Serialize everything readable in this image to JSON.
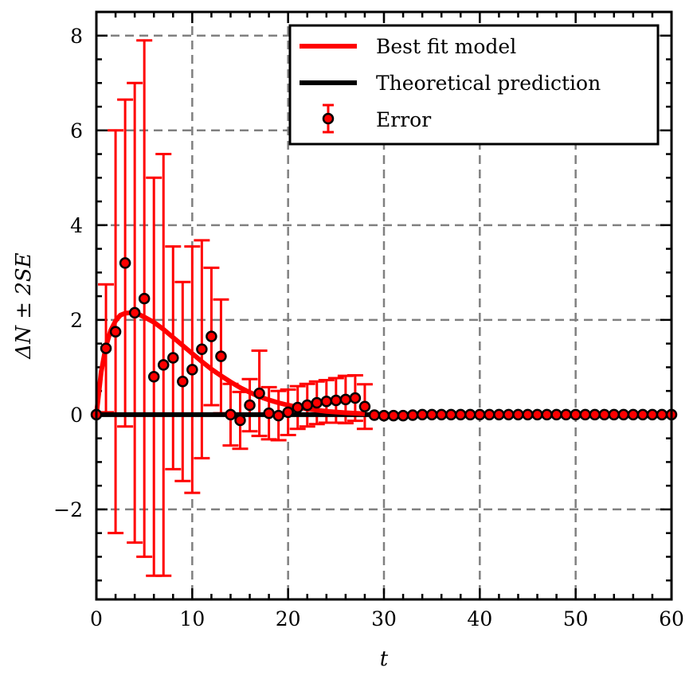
{
  "chart_data": {
    "type": "scatter",
    "xlabel": "t",
    "ylabel": "ΔN ± 2SE",
    "xlim": [
      0,
      60
    ],
    "ylim": [
      -3.9,
      8.5
    ],
    "x_ticks": [
      0,
      10,
      20,
      30,
      40,
      50,
      60
    ],
    "x_tick_labels": [
      "0",
      "10",
      "20",
      "30",
      "40",
      "50",
      "60"
    ],
    "y_ticks": [
      -2,
      0,
      2,
      4,
      6,
      8
    ],
    "y_tick_labels": [
      "−2",
      "0",
      "2",
      "4",
      "6",
      "8"
    ],
    "grid": true,
    "legend_position": "top-right",
    "colors": {
      "fit": "#ff0000",
      "theory": "#000000",
      "error": "#ff0000",
      "marker_edge": "#000000"
    },
    "series": [
      {
        "name": "Best fit model",
        "kind": "line",
        "x": [
          0,
          0.5,
          1,
          1.5,
          2,
          2.5,
          3,
          3.5,
          4,
          4.5,
          5,
          6,
          7,
          8,
          9,
          10,
          11,
          12,
          13,
          14,
          15,
          16,
          17,
          18,
          19,
          20,
          22,
          24,
          26,
          28
        ],
        "y": [
          0,
          0.9,
          1.45,
          1.78,
          1.98,
          2.1,
          2.14,
          2.15,
          2.14,
          2.11,
          2.06,
          1.95,
          1.8,
          1.63,
          1.46,
          1.29,
          1.12,
          0.96,
          0.82,
          0.69,
          0.57,
          0.47,
          0.38,
          0.31,
          0.25,
          0.2,
          0.12,
          0.07,
          0.04,
          0.02
        ]
      },
      {
        "name": "Theoretical prediction",
        "kind": "line",
        "x": [
          0,
          60
        ],
        "y": [
          0,
          0
        ]
      },
      {
        "name": "Error",
        "kind": "errorbar",
        "x": [
          0,
          1,
          2,
          3,
          4,
          5,
          6,
          7,
          8,
          9,
          10,
          11,
          12,
          13,
          14,
          15,
          16,
          17,
          18,
          19,
          20,
          21,
          22,
          23,
          24,
          25,
          26,
          27,
          28,
          29,
          30,
          31,
          32,
          33,
          34,
          35,
          36,
          37,
          38,
          39,
          40,
          41,
          42,
          43,
          44,
          45,
          46,
          47,
          48,
          49,
          50,
          51,
          52,
          53,
          54,
          55,
          56,
          57,
          58,
          59,
          60
        ],
        "y": [
          0,
          1.4,
          1.75,
          3.2,
          2.15,
          2.45,
          0.8,
          1.05,
          1.2,
          0.7,
          0.95,
          1.38,
          1.65,
          1.23,
          0,
          -0.12,
          0.2,
          0.45,
          0.03,
          -0.02,
          0.05,
          0.15,
          0.2,
          0.25,
          0.28,
          0.3,
          0.32,
          0.35,
          0.17,
          -0.01,
          -0.02,
          -0.02,
          -0.02,
          -0.01,
          0,
          0,
          0,
          0,
          0,
          0,
          0,
          0,
          0,
          0,
          0,
          0,
          0,
          0,
          0,
          0,
          0,
          0,
          0,
          0,
          0,
          0,
          0,
          0,
          0,
          0,
          0
        ],
        "err": [
          0,
          1.35,
          4.25,
          3.45,
          4.85,
          5.45,
          4.2,
          4.45,
          2.35,
          2.1,
          2.6,
          2.3,
          1.45,
          1.2,
          0.65,
          0.6,
          0.55,
          0.9,
          0.55,
          0.52,
          0.48,
          0.45,
          0.45,
          0.45,
          0.45,
          0.47,
          0.5,
          0.48,
          0.47,
          0,
          0,
          0,
          0,
          0,
          0,
          0,
          0,
          0,
          0,
          0,
          0,
          0,
          0,
          0,
          0,
          0,
          0,
          0,
          0,
          0,
          0,
          0,
          0,
          0,
          0,
          0,
          0,
          0,
          0,
          0,
          0
        ]
      }
    ]
  }
}
